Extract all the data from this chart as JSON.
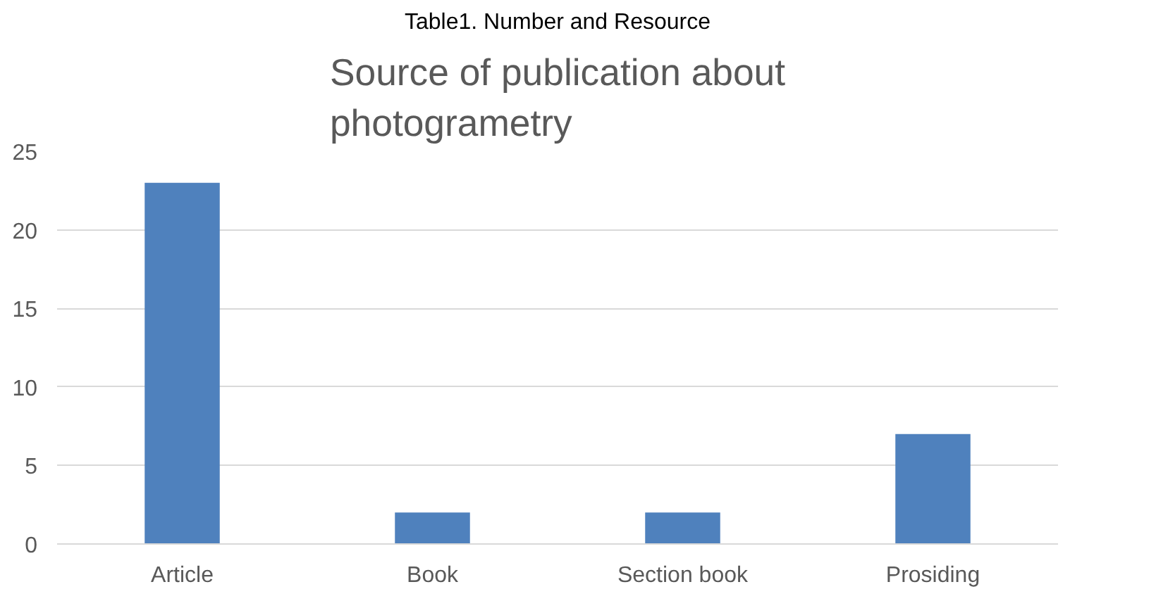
{
  "chart_data": {
    "type": "bar",
    "title": "Source of publication about photogrametry",
    "annotations": [
      "Table1. Number and Resource"
    ],
    "categories": [
      "Article",
      "Book",
      "Section book",
      "Prosiding"
    ],
    "values": [
      23,
      2,
      2,
      7
    ],
    "color": "#4f81bd",
    "ylim": [
      0,
      25
    ],
    "yticks": [
      0,
      5,
      10,
      15,
      20,
      25
    ],
    "grid": "y"
  }
}
